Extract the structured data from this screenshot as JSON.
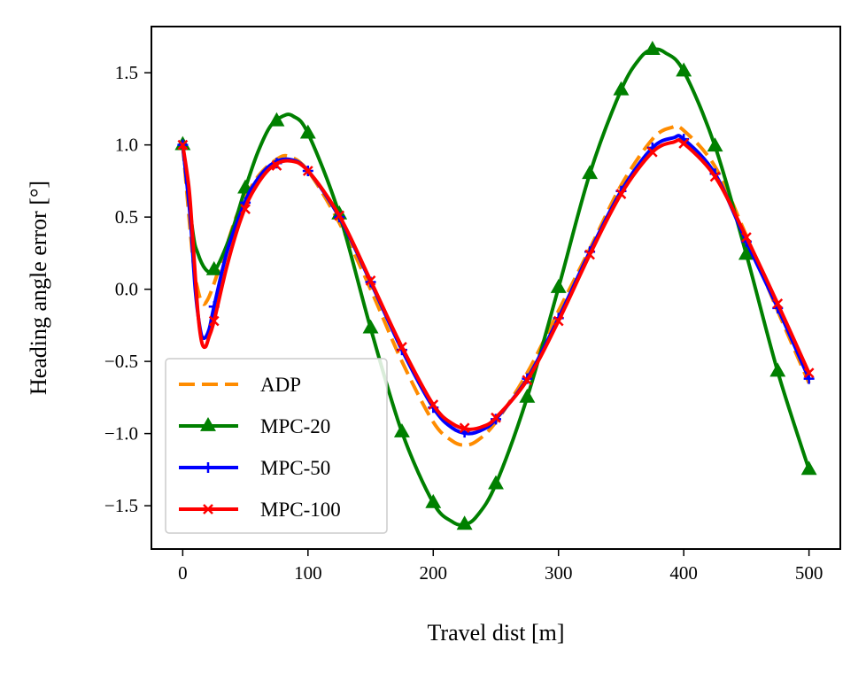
{
  "chart_data": {
    "type": "line",
    "xlabel": "Travel dist [m]",
    "ylabel": "Heading angle error [°]",
    "xlim": [
      -25,
      525
    ],
    "ylim": [
      -1.8,
      1.82
    ],
    "xticks": [
      0,
      100,
      200,
      300,
      400,
      500
    ],
    "xtick_labels": [
      "0",
      "100",
      "200",
      "300",
      "400",
      "500"
    ],
    "yticks": [
      -1.5,
      -1.0,
      -0.5,
      0.0,
      0.5,
      1.0,
      1.5
    ],
    "ytick_labels": [
      "−1.5",
      "−1.0",
      "−0.5",
      "0.0",
      "0.5",
      "1.0",
      "1.5"
    ],
    "grid": false,
    "legend_position": "lower-left",
    "series": [
      {
        "name": "ADP",
        "color": "#ff8c00",
        "linestyle": "dashed",
        "marker": "none",
        "x": [
          0,
          8,
          12,
          16,
          20,
          25,
          35,
          45,
          60,
          75,
          85,
          100,
          125,
          150,
          175,
          200,
          215,
          225,
          235,
          250,
          275,
          300,
          325,
          350,
          375,
          390,
          400,
          425,
          450,
          475,
          500
        ],
        "y": [
          1.0,
          0.22,
          0.0,
          -0.1,
          -0.07,
          0.04,
          0.3,
          0.55,
          0.78,
          0.9,
          0.92,
          0.82,
          0.46,
          0.0,
          -0.5,
          -0.92,
          -1.05,
          -1.08,
          -1.05,
          -0.92,
          -0.58,
          -0.15,
          0.28,
          0.72,
          1.04,
          1.12,
          1.1,
          0.85,
          0.37,
          -0.15,
          -0.65
        ]
      },
      {
        "name": "MPC-20",
        "color": "#008000",
        "linestyle": "solid",
        "marker": "triangle",
        "x": [
          0,
          8,
          12,
          18,
          24,
          30,
          40,
          50,
          60,
          70,
          80,
          88,
          100,
          125,
          150,
          175,
          200,
          215,
          225,
          235,
          250,
          275,
          300,
          325,
          350,
          365,
          375,
          385,
          400,
          425,
          450,
          475,
          500
        ],
        "y": [
          1.0,
          0.4,
          0.25,
          0.14,
          0.12,
          0.2,
          0.42,
          0.7,
          0.95,
          1.13,
          1.2,
          1.2,
          1.08,
          0.52,
          -0.27,
          -0.99,
          -1.48,
          -1.61,
          -1.63,
          -1.57,
          -1.35,
          -0.75,
          0.01,
          0.8,
          1.38,
          1.6,
          1.66,
          1.64,
          1.51,
          0.99,
          0.24,
          -0.57,
          -1.25
        ]
      },
      {
        "name": "MPC-50",
        "color": "#0000ff",
        "linestyle": "solid",
        "marker": "plus",
        "x": [
          0,
          6,
          10,
          14,
          17,
          21,
          25,
          35,
          45,
          55,
          70,
          85,
          100,
          125,
          150,
          175,
          200,
          215,
          228,
          240,
          250,
          275,
          300,
          325,
          350,
          375,
          392,
          400,
          425,
          450,
          475,
          500
        ],
        "y": [
          1.0,
          0.5,
          0.0,
          -0.28,
          -0.34,
          -0.28,
          -0.12,
          0.25,
          0.5,
          0.7,
          0.86,
          0.9,
          0.82,
          0.5,
          0.05,
          -0.42,
          -0.82,
          -0.96,
          -1.0,
          -0.97,
          -0.9,
          -0.62,
          -0.2,
          0.26,
          0.68,
          0.98,
          1.05,
          1.04,
          0.8,
          0.33,
          -0.13,
          -0.62
        ]
      },
      {
        "name": "MPC-100",
        "color": "#ff0000",
        "linestyle": "solid",
        "marker": "x",
        "x": [
          0,
          5,
          8,
          12,
          15,
          18,
          21,
          25,
          35,
          45,
          55,
          70,
          85,
          100,
          125,
          150,
          175,
          200,
          215,
          228,
          240,
          250,
          275,
          300,
          325,
          350,
          375,
          392,
          400,
          425,
          450,
          475,
          500
        ],
        "y": [
          1.0,
          0.7,
          0.35,
          -0.15,
          -0.36,
          -0.4,
          -0.33,
          -0.22,
          0.15,
          0.45,
          0.66,
          0.84,
          0.89,
          0.82,
          0.51,
          0.06,
          -0.4,
          -0.8,
          -0.93,
          -0.97,
          -0.95,
          -0.89,
          -0.63,
          -0.22,
          0.24,
          0.66,
          0.95,
          1.02,
          1.01,
          0.78,
          0.36,
          -0.1,
          -0.58
        ]
      }
    ]
  }
}
